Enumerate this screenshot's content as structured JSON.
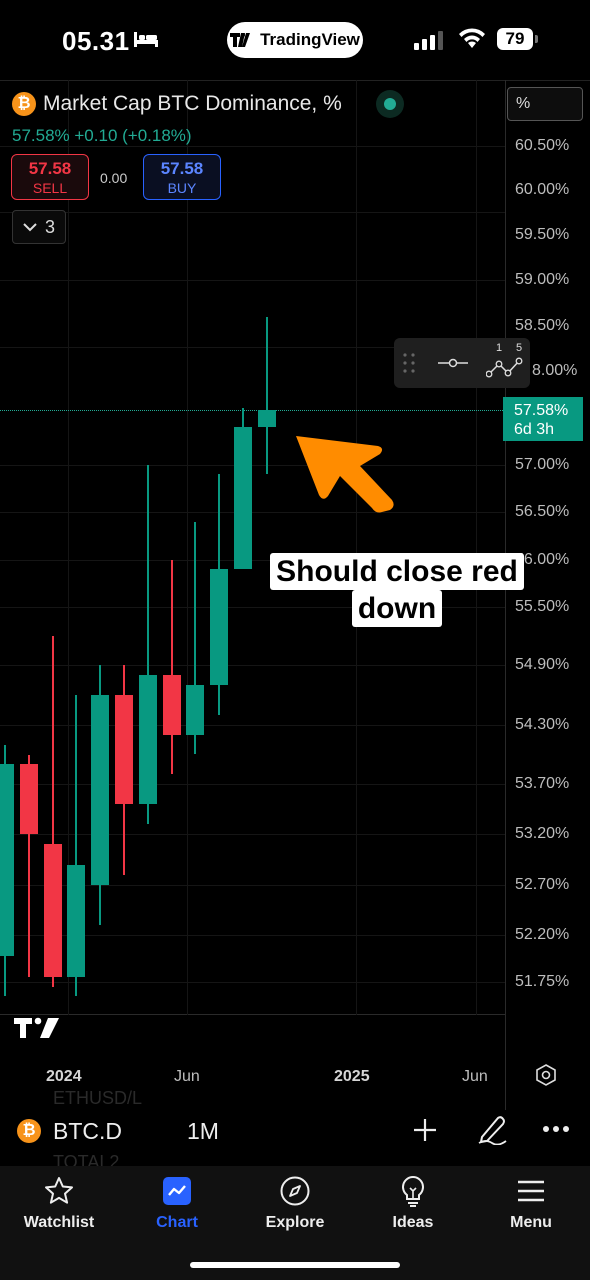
{
  "status_bar": {
    "time": "05.31",
    "app_pill": "TradingView",
    "battery": "79"
  },
  "header": {
    "title": "Market Cap BTC Dominance, %",
    "change": "57.58% +0.10 (+0.18%)",
    "sell_price": "57.58",
    "sell_label": "SELL",
    "spread": "0.00",
    "buy_price": "57.58",
    "buy_label": "BUY",
    "indicator_count": "3",
    "unit": "%"
  },
  "price_axis": {
    "labels": [
      "60.50%",
      "60.00%",
      "59.50%",
      "59.00%",
      "58.50%",
      "58.00%",
      "57.00%",
      "56.50%",
      "56.00%",
      "55.50%",
      "54.90%",
      "54.30%",
      "53.70%",
      "53.20%",
      "52.70%",
      "52.20%",
      "51.75%"
    ],
    "current_price": "57.58%",
    "countdown": "6d 3h"
  },
  "tool_widget": {
    "line_label_1": "1",
    "line_label_2": "5"
  },
  "annotation": {
    "line1": "Should close red",
    "line2": "down",
    "arrow_color": "#ff8c00"
  },
  "chart_data": {
    "type": "candlestick",
    "interval": "1M",
    "colors": {
      "up": "#089981",
      "down": "#f23645"
    },
    "candles": [
      {
        "open": 52.0,
        "high": 54.1,
        "low": 51.6,
        "close": 53.9
      },
      {
        "open": 53.9,
        "high": 54.0,
        "low": 51.8,
        "close": 53.2
      },
      {
        "open": 53.1,
        "high": 55.2,
        "low": 51.7,
        "close": 51.8
      },
      {
        "open": 51.8,
        "high": 54.6,
        "low": 51.6,
        "close": 52.9
      },
      {
        "open": 52.7,
        "high": 54.9,
        "low": 52.3,
        "close": 54.6
      },
      {
        "open": 54.6,
        "high": 54.9,
        "low": 52.8,
        "close": 53.5
      },
      {
        "open": 53.5,
        "high": 57.0,
        "low": 53.3,
        "close": 54.8
      },
      {
        "open": 54.8,
        "high": 56.0,
        "low": 53.8,
        "close": 54.2
      },
      {
        "open": 54.2,
        "high": 56.4,
        "low": 54.0,
        "close": 54.7
      },
      {
        "open": 54.7,
        "high": 56.9,
        "low": 54.4,
        "close": 55.9
      },
      {
        "open": 55.9,
        "high": 57.6,
        "low": 55.9,
        "close": 57.4
      },
      {
        "open": 57.4,
        "high": 58.6,
        "low": 56.9,
        "close": 57.58
      }
    ]
  },
  "time_axis": {
    "labels": [
      "2024",
      "Jun",
      "2025",
      "Jun"
    ]
  },
  "symbol_bar": {
    "ghost_1": "ETHUSD/L",
    "ghost_2": "TOTAL2",
    "symbol": "BTC.D",
    "interval": "1M"
  },
  "tabs": [
    {
      "label": "Watchlist",
      "icon": "star-icon"
    },
    {
      "label": "Chart",
      "icon": "chart-icon",
      "active": true
    },
    {
      "label": "Explore",
      "icon": "compass-icon"
    },
    {
      "label": "Ideas",
      "icon": "lightbulb-icon"
    },
    {
      "label": "Menu",
      "icon": "hamburger-icon"
    }
  ]
}
